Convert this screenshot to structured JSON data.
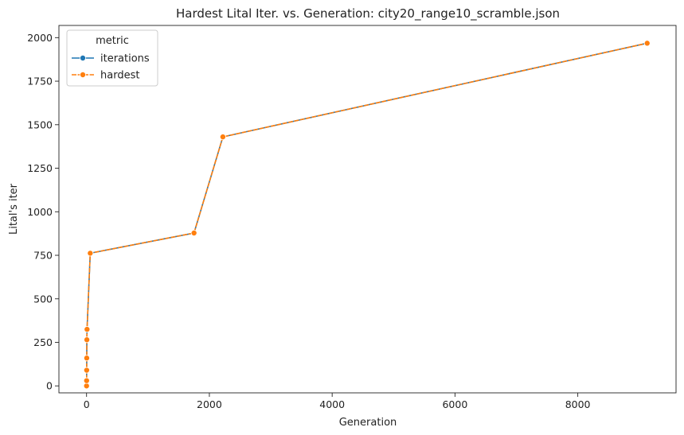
{
  "chart_data": {
    "type": "line",
    "title": "Hardest Lital Iter. vs. Generation: city20_range10_scramble.json",
    "xlabel": "Generation",
    "ylabel": "Lital's iter",
    "xlim": [
      -450,
      9600
    ],
    "ylim": [
      -40,
      2070
    ],
    "xticks": [
      0,
      2000,
      4000,
      6000,
      8000
    ],
    "yticks": [
      0,
      250,
      500,
      750,
      1000,
      1250,
      1500,
      1750,
      2000
    ],
    "grid": false,
    "legend": {
      "title": "metric",
      "placement": "top-left"
    },
    "series": [
      {
        "name": "iterations",
        "color": "#1f77b4",
        "x": [
          0,
          1,
          2,
          3,
          5,
          8,
          60,
          1750,
          2220,
          9130
        ],
        "y": [
          0,
          30,
          90,
          160,
          265,
          325,
          762,
          878,
          1430,
          1968
        ]
      },
      {
        "name": "hardest",
        "color": "#ff7f0e",
        "x": [
          0,
          1,
          2,
          3,
          5,
          8,
          60,
          1750,
          2220,
          9130
        ],
        "y": [
          0,
          30,
          90,
          160,
          265,
          325,
          762,
          878,
          1430,
          1968
        ]
      }
    ]
  }
}
